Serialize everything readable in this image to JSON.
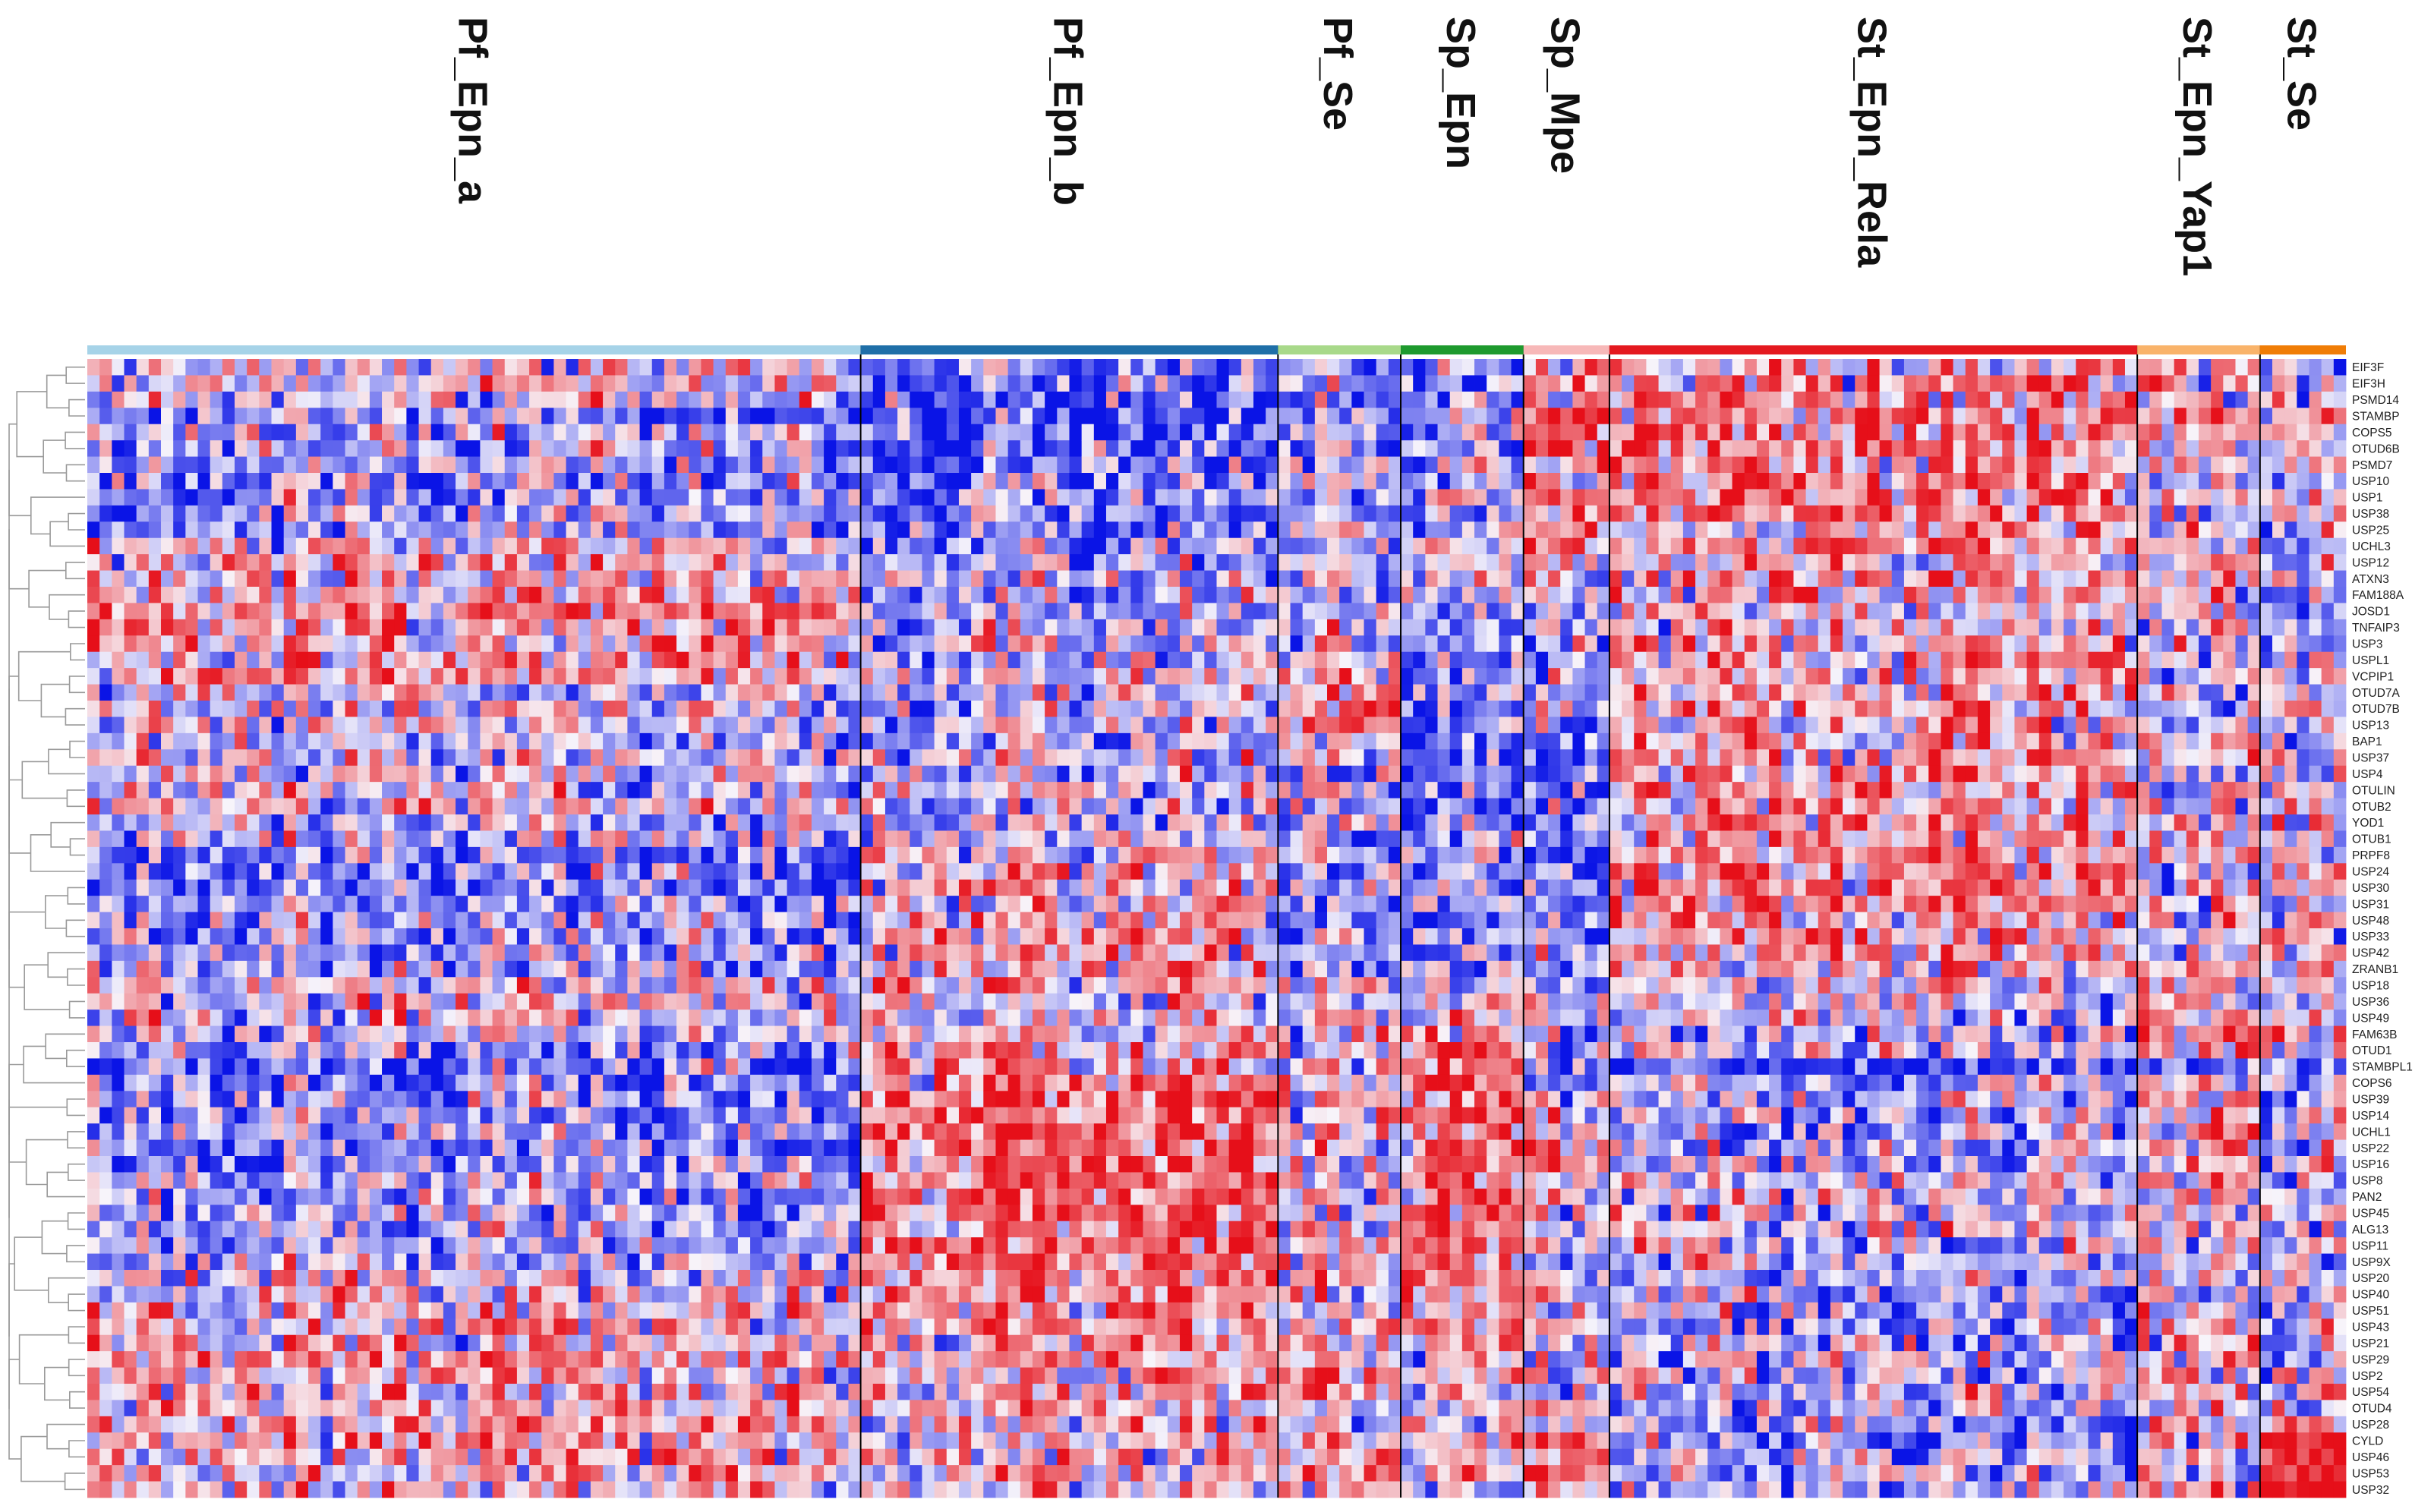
{
  "chart_data": {
    "type": "heatmap",
    "title": "",
    "xlabel": "",
    "ylabel": "",
    "colors": {
      "low": "#0a14e6",
      "mid": "#f7f4fa",
      "high": "#e60f19",
      "divider": "#000000",
      "tree": "#9a9a9a"
    },
    "value_range": [
      -1,
      1
    ],
    "dendrogram_rows": true,
    "legend": "none",
    "groups": [
      {
        "name": "Pf_Epn_a",
        "samples": 63,
        "color": "#a6d3e8"
      },
      {
        "name": "Pf_Epn_b",
        "samples": 34,
        "color": "#1f6fa8"
      },
      {
        "name": "Pf_Se",
        "samples": 10,
        "color": "#a8d98a"
      },
      {
        "name": "Sp_Epn",
        "samples": 10,
        "color": "#1e9a2e"
      },
      {
        "name": "Sp_Mpe",
        "samples": 7,
        "color": "#f7b8b8"
      },
      {
        "name": "St_Epn_Rela",
        "samples": 43,
        "color": "#e4191f"
      },
      {
        "name": "St_Epn_Yap1",
        "samples": 10,
        "color": "#f9b36a"
      },
      {
        "name": "St_Se",
        "samples": 7,
        "color": "#f07d06"
      }
    ],
    "genes": [
      "EIF3F",
      "EIF3H",
      "PSMD14",
      "STAMBP",
      "COPS5",
      "OTUD6B",
      "PSMD7",
      "USP10",
      "USP1",
      "USP38",
      "USP25",
      "UCHL3",
      "USP12",
      "ATXN3",
      "FAM188A",
      "JOSD1",
      "TNFAIP3",
      "USP3",
      "USPL1",
      "VCPIP1",
      "OTUD7A",
      "OTUD7B",
      "USP13",
      "BAP1",
      "USP37",
      "USP4",
      "OTULIN",
      "OTUB2",
      "YOD1",
      "OTUB1",
      "PRPF8",
      "USP24",
      "USP30",
      "USP31",
      "USP48",
      "USP33",
      "USP42",
      "ZRANB1",
      "USP18",
      "USP36",
      "USP49",
      "FAM63B",
      "OTUD1",
      "STAMBPL1",
      "COPS6",
      "USP39",
      "USP14",
      "UCHL1",
      "USP22",
      "USP16",
      "USP8",
      "PAN2",
      "USP45",
      "ALG13",
      "USP11",
      "USP9X",
      "USP20",
      "USP40",
      "USP51",
      "USP43",
      "USP21",
      "USP29",
      "USP2",
      "USP54",
      "OTUD4",
      "USP28",
      "CYLD",
      "USP46",
      "USP53",
      "USP32"
    ],
    "bias": {
      "Pf_Epn_a": [
        0,
        0,
        0,
        -0.3,
        -0.2,
        -0.2,
        -0.2,
        -0.3,
        -0.3,
        -0.2,
        -0.2,
        0.1,
        0.1,
        0.1,
        0.2,
        0.3,
        0.2,
        0.1,
        0.2,
        0.2,
        0,
        0,
        0,
        -0.1,
        0,
        0,
        0,
        0,
        -0.1,
        -0.1,
        -0.3,
        -0.3,
        -0.3,
        -0.2,
        -0.2,
        -0.2,
        -0.2,
        -0.1,
        0,
        0,
        0,
        -0.1,
        -0.3,
        -0.4,
        -0.3,
        -0.3,
        -0.3,
        -0.2,
        -0.3,
        -0.3,
        -0.2,
        -0.2,
        -0.2,
        -0.2,
        -0.2,
        -0.1,
        0,
        0,
        0.1,
        0.1,
        0.1,
        0.2,
        0.1,
        0.1,
        0.1,
        0.2,
        0.1,
        0.1,
        0.1,
        0.1
      ],
      "Pf_Epn_b": [
        -0.3,
        -0.4,
        -0.5,
        -0.5,
        -0.4,
        -0.4,
        -0.4,
        -0.3,
        -0.3,
        -0.3,
        -0.3,
        -0.3,
        -0.2,
        -0.2,
        -0.2,
        -0.2,
        -0.2,
        -0.1,
        -0.1,
        -0.1,
        -0.1,
        -0.1,
        -0.1,
        -0.1,
        -0.1,
        -0.1,
        -0.1,
        -0.1,
        -0.1,
        -0.1,
        0.1,
        0.1,
        0.1,
        0.1,
        0.2,
        0.2,
        0.2,
        0.1,
        0.1,
        0,
        0,
        0.1,
        0.2,
        0.3,
        0.3,
        0.4,
        0.4,
        0.4,
        0.4,
        0.4,
        0.4,
        0.4,
        0.4,
        0.4,
        0.4,
        0.3,
        0.3,
        0.3,
        0.3,
        0.2,
        0.2,
        0.2,
        0.1,
        0.1,
        0.1,
        0.1,
        0.1,
        0.1,
        0.1,
        0
      ],
      "Pf_Se": [
        -0.3,
        -0.2,
        -0.2,
        -0.2,
        -0.2,
        -0.2,
        -0.2,
        -0.2,
        -0.2,
        -0.2,
        -0.2,
        -0.1,
        -0.1,
        -0.1,
        -0.1,
        -0.1,
        0,
        0,
        0,
        0,
        0.3,
        0.4,
        0.3,
        0.1,
        0,
        -0.1,
        -0.1,
        -0.1,
        -0.2,
        -0.2,
        -0.2,
        -0.2,
        -0.2,
        -0.3,
        -0.3,
        -0.3,
        -0.2,
        -0.1,
        0,
        0,
        0,
        0,
        0,
        0,
        0,
        0,
        0,
        0,
        0,
        0,
        0,
        0,
        0,
        0,
        0,
        0,
        0,
        0,
        0,
        0,
        0.1,
        0.2,
        0.4,
        0.4,
        0.1,
        0,
        0.1,
        0.2,
        0.2,
        0.1
      ],
      "Sp_Epn": [
        -0.2,
        -0.2,
        -0.2,
        -0.2,
        -0.2,
        -0.2,
        -0.2,
        -0.2,
        -0.2,
        -0.2,
        -0.2,
        -0.1,
        -0.1,
        -0.1,
        -0.1,
        -0.1,
        -0.2,
        -0.2,
        -0.2,
        -0.2,
        -0.3,
        -0.3,
        -0.4,
        -0.4,
        -0.4,
        -0.4,
        -0.4,
        -0.4,
        -0.3,
        -0.3,
        -0.3,
        -0.3,
        -0.3,
        -0.3,
        -0.3,
        -0.2,
        -0.2,
        -0.1,
        -0.1,
        -0.1,
        0,
        0.3,
        0.5,
        0.5,
        0.4,
        0.4,
        0.4,
        0.4,
        0.4,
        0.4,
        0.4,
        0.4,
        0.4,
        0.4,
        0.4,
        0.4,
        0.4,
        0.3,
        0.3,
        0.2,
        0.2,
        0.1,
        0.1,
        0.1,
        0,
        0.1,
        0.1,
        0.1,
        0.1,
        0
      ],
      "Sp_Mpe": [
        0.2,
        0.3,
        0.3,
        0.3,
        0.3,
        0.4,
        0.4,
        0.3,
        0.3,
        0.3,
        0.3,
        0.2,
        0.1,
        0,
        0,
        0,
        -0.1,
        -0.2,
        -0.2,
        -0.2,
        -0.2,
        -0.2,
        -0.3,
        -0.3,
        -0.3,
        -0.3,
        -0.3,
        -0.3,
        -0.3,
        -0.3,
        -0.3,
        -0.3,
        -0.3,
        -0.3,
        -0.3,
        -0.3,
        -0.3,
        -0.3,
        -0.2,
        -0.2,
        -0.2,
        -0.2,
        -0.2,
        -0.3,
        -0.3,
        0,
        0.1,
        0.2,
        0.3,
        0.3,
        0.2,
        0.1,
        0,
        -0.1,
        -0.1,
        -0.1,
        -0.1,
        -0.1,
        -0.1,
        -0.1,
        -0.1,
        -0.1,
        0,
        0,
        0.2,
        0.2,
        0.3,
        0.3,
        0.3,
        0.2
      ],
      "St_Epn_Rela": [
        0.1,
        0.2,
        0.3,
        0.3,
        0.3,
        0.3,
        0.3,
        0.3,
        0.3,
        0.3,
        0.2,
        0.2,
        0.2,
        0.2,
        0.2,
        0.1,
        0.1,
        0.2,
        0.2,
        0.2,
        0.2,
        0.2,
        0.3,
        0.3,
        0.2,
        0.2,
        0.2,
        0.2,
        0.2,
        0.2,
        0.3,
        0.3,
        0.3,
        0.3,
        0.2,
        0.2,
        0.2,
        0.1,
        0,
        0,
        -0.1,
        -0.1,
        -0.1,
        -0.6,
        -0.2,
        -0.2,
        -0.2,
        -0.2,
        -0.1,
        -0.1,
        -0.1,
        0,
        0,
        0,
        -0.1,
        -0.1,
        -0.2,
        -0.2,
        -0.2,
        -0.2,
        -0.1,
        -0.1,
        -0.1,
        -0.1,
        -0.2,
        -0.3,
        -0.3,
        -0.2,
        -0.2,
        -0.2
      ],
      "St_Epn_Yap1": [
        0.1,
        0.1,
        0,
        0,
        0,
        0,
        0,
        0,
        0,
        0,
        0,
        0,
        0,
        0,
        0,
        -0.1,
        -0.1,
        -0.1,
        -0.1,
        -0.2,
        -0.2,
        -0.2,
        -0.2,
        -0.1,
        0,
        0,
        -0.1,
        -0.1,
        -0.1,
        -0.1,
        -0.1,
        -0.1,
        -0.1,
        -0.1,
        -0.1,
        -0.1,
        -0.1,
        0,
        0,
        0.1,
        0.1,
        0.3,
        0.2,
        -0.4,
        0,
        0,
        0,
        0.1,
        0.1,
        0.1,
        0.1,
        0,
        0,
        0,
        0,
        0,
        0,
        0,
        0,
        0,
        0,
        0,
        0,
        0,
        0,
        0,
        0,
        0,
        0,
        0
      ],
      "St_Se": [
        -0.1,
        -0.1,
        0,
        0,
        0,
        0,
        0,
        0,
        0,
        0,
        0,
        -0.1,
        -0.1,
        -0.1,
        -0.1,
        -0.1,
        -0.1,
        -0.1,
        -0.1,
        -0.1,
        -0.1,
        -0.1,
        -0.1,
        0,
        0,
        0,
        0,
        0,
        0,
        0,
        0,
        0,
        0,
        0,
        0,
        0,
        0,
        0,
        0,
        0,
        0,
        0.2,
        0.1,
        -0.3,
        -0.1,
        -0.1,
        -0.1,
        -0.1,
        -0.1,
        -0.1,
        -0.1,
        -0.1,
        -0.1,
        -0.1,
        -0.1,
        -0.1,
        -0.1,
        -0.1,
        -0.1,
        -0.1,
        -0.1,
        -0.1,
        -0.1,
        -0.1,
        0,
        0.4,
        0.6,
        0.7,
        0.7,
        0.7
      ]
    }
  }
}
